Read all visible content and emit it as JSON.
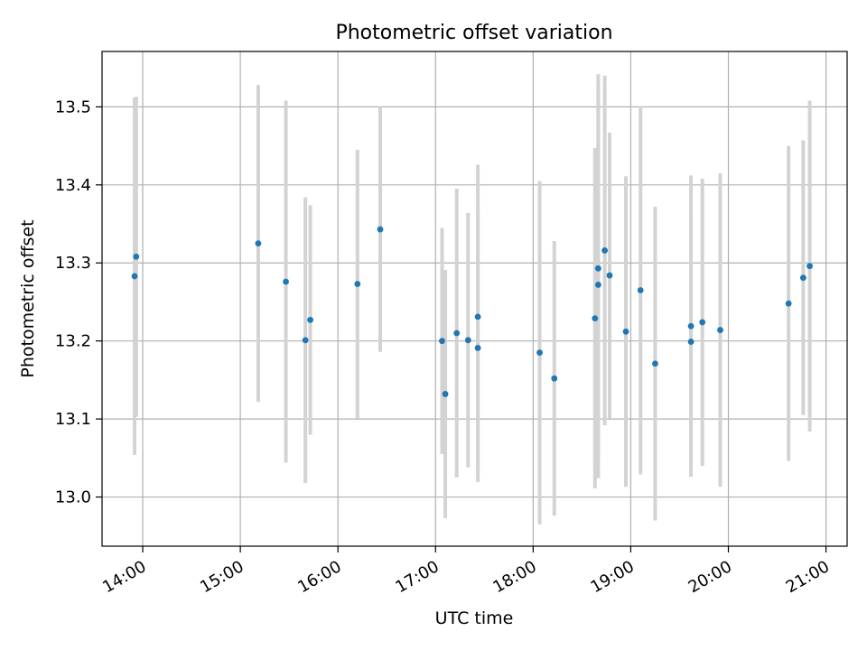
{
  "chart_data": {
    "type": "scatter",
    "title": "Photometric offset variation",
    "xlabel": "UTC time",
    "ylabel": "Photometric offset",
    "x_unit": "UTC time of day",
    "xlim": [
      "13:35",
      "21:13"
    ],
    "ylim": [
      12.937,
      13.571
    ],
    "xticks": [
      "14:00",
      "15:00",
      "16:00",
      "17:00",
      "18:00",
      "19:00",
      "20:00",
      "21:00"
    ],
    "yticks": [
      "13.0",
      "13.1",
      "13.2",
      "13.3",
      "13.4",
      "13.5"
    ],
    "grid": true,
    "legend": "none",
    "colors": {
      "point": "#1f77b4",
      "errorbar": "#d3d3d3",
      "grid": "#b0b0b0"
    },
    "points": [
      {
        "x": "13:55",
        "y": 13.283,
        "yerr": 0.229
      },
      {
        "x": "13:56",
        "y": 13.308,
        "yerr": 0.205
      },
      {
        "x": "15:11",
        "y": 13.325,
        "yerr": 0.203
      },
      {
        "x": "15:28",
        "y": 13.276,
        "yerr": 0.232
      },
      {
        "x": "15:40",
        "y": 13.201,
        "yerr": 0.183
      },
      {
        "x": "15:43",
        "y": 13.227,
        "yerr": 0.147
      },
      {
        "x": "16:12",
        "y": 13.273,
        "yerr": 0.172
      },
      {
        "x": "16:26",
        "y": 13.343,
        "yerr": 0.157
      },
      {
        "x": "17:04",
        "y": 13.2,
        "yerr": 0.145
      },
      {
        "x": "17:06",
        "y": 13.132,
        "yerr": 0.159
      },
      {
        "x": "17:13",
        "y": 13.21,
        "yerr": 0.185
      },
      {
        "x": "17:20",
        "y": 13.201,
        "yerr": 0.163
      },
      {
        "x": "17:26",
        "y": 13.231,
        "yerr": 0.195
      },
      {
        "x": "17:26",
        "y": 13.191,
        "yerr": 0.172
      },
      {
        "x": "18:04",
        "y": 13.185,
        "yerr": 0.22
      },
      {
        "x": "18:13",
        "y": 13.152,
        "yerr": 0.176
      },
      {
        "x": "18:38",
        "y": 13.229,
        "yerr": 0.218
      },
      {
        "x": "18:40",
        "y": 13.293,
        "yerr": 0.249
      },
      {
        "x": "18:40",
        "y": 13.272,
        "yerr": 0.248
      },
      {
        "x": "18:44",
        "y": 13.316,
        "yerr": 0.224
      },
      {
        "x": "18:47",
        "y": 13.284,
        "yerr": 0.183
      },
      {
        "x": "18:57",
        "y": 13.212,
        "yerr": 0.199
      },
      {
        "x": "19:06",
        "y": 13.265,
        "yerr": 0.236
      },
      {
        "x": "19:15",
        "y": 13.171,
        "yerr": 0.201
      },
      {
        "x": "19:37",
        "y": 13.219,
        "yerr": 0.193
      },
      {
        "x": "19:37",
        "y": 13.199,
        "yerr": 0.153
      },
      {
        "x": "19:44",
        "y": 13.224,
        "yerr": 0.184
      },
      {
        "x": "19:55",
        "y": 13.214,
        "yerr": 0.201
      },
      {
        "x": "20:37",
        "y": 13.248,
        "yerr": 0.202
      },
      {
        "x": "20:46",
        "y": 13.281,
        "yerr": 0.176
      },
      {
        "x": "20:50",
        "y": 13.296,
        "yerr": 0.212
      }
    ]
  }
}
